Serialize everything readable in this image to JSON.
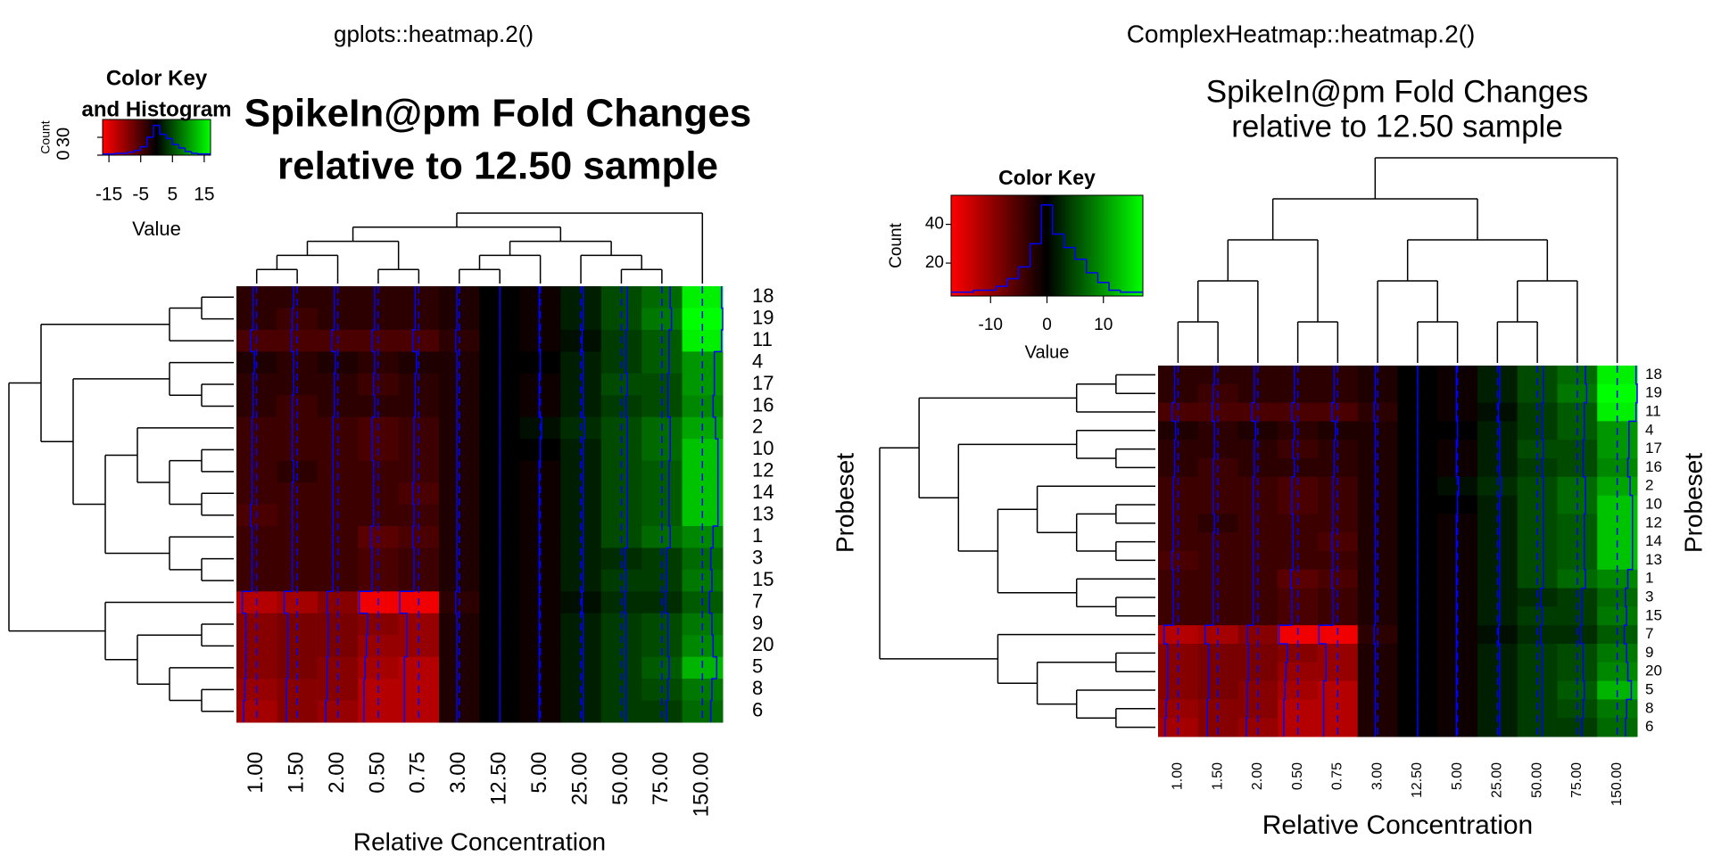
{
  "chart_data": [
    {
      "type": "heatmap",
      "title": "gplots::heatmap.2()",
      "main_title": [
        "SpikeIn@pm Fold Changes",
        "relative to 12.50 sample"
      ],
      "xlabel": "Relative Concentration",
      "categories": [
        "1.00",
        "1.50",
        "2.00",
        "0.50",
        "0.75",
        "3.00",
        "12.50",
        "5.00",
        "25.00",
        "50.00",
        "75.00",
        "150.00"
      ],
      "rows": [
        "18",
        "19",
        "11",
        "4",
        "17",
        "16",
        "2",
        "10",
        "12",
        "14",
        "13",
        "1",
        "3",
        "15",
        "7",
        "9",
        "20",
        "5",
        "8",
        "6"
      ],
      "values": [
        [
          -3,
          -3,
          -3,
          -3,
          -3,
          -2,
          0,
          -1,
          2,
          5,
          7,
          16
        ],
        [
          -3,
          -4,
          -3,
          -3,
          -3,
          -2,
          0,
          -1,
          2,
          5,
          8,
          17
        ],
        [
          -5,
          -5,
          -5,
          -5,
          -5,
          -3,
          0,
          -1,
          1,
          4,
          6,
          16
        ],
        [
          -2,
          -3,
          -2,
          -3,
          -2,
          -2,
          0,
          0,
          2,
          4,
          6,
          10
        ],
        [
          -3,
          -3,
          -3,
          -4,
          -3,
          -2,
          0,
          -1,
          2,
          5,
          5,
          10
        ],
        [
          -3,
          -4,
          -3,
          -3,
          -3,
          -2,
          0,
          -1,
          2,
          4,
          5,
          9
        ],
        [
          -4,
          -4,
          -4,
          -5,
          -4,
          -2,
          0,
          1,
          3,
          5,
          7,
          11
        ],
        [
          -4,
          -4,
          -4,
          -5,
          -4,
          -2,
          0,
          0,
          2,
          5,
          7,
          13
        ],
        [
          -4,
          -3,
          -4,
          -4,
          -4,
          -2,
          0,
          -1,
          2,
          5,
          6,
          13
        ],
        [
          -4,
          -4,
          -4,
          -4,
          -5,
          -2,
          0,
          -1,
          2,
          5,
          6,
          13
        ],
        [
          -5,
          -4,
          -4,
          -4,
          -4,
          -2,
          0,
          -1,
          2,
          5,
          6,
          13
        ],
        [
          -4,
          -4,
          -4,
          -6,
          -5,
          -2,
          0,
          -1,
          2,
          5,
          7,
          9
        ],
        [
          -4,
          -4,
          -4,
          -5,
          -4,
          -2,
          0,
          -1,
          2,
          3,
          4,
          7
        ],
        [
          -4,
          -4,
          -4,
          -5,
          -4,
          -2,
          0,
          -1,
          2,
          4,
          4,
          8
        ],
        [
          -12,
          -11,
          -9,
          -16,
          -16,
          -3,
          0,
          -1,
          1,
          3,
          3,
          6
        ],
        [
          -9,
          -8,
          -8,
          -9,
          -10,
          -2,
          0,
          -1,
          2,
          4,
          5,
          8
        ],
        [
          -9,
          -8,
          -8,
          -10,
          -10,
          -2,
          0,
          -1,
          2,
          4,
          5,
          9
        ],
        [
          -9,
          -8,
          -9,
          -11,
          -12,
          -2,
          0,
          -1,
          2,
          4,
          6,
          12
        ],
        [
          -10,
          -9,
          -9,
          -12,
          -12,
          -2,
          0,
          -1,
          2,
          4,
          5,
          8
        ],
        [
          -11,
          -9,
          -10,
          -12,
          -12,
          -2,
          0,
          -1,
          2,
          4,
          4,
          7
        ]
      ],
      "zlim": [
        -17,
        17
      ],
      "color_scale": [
        "#ff0000",
        "#000000",
        "#00ff00"
      ],
      "trace_color": "#0000ff",
      "key": {
        "title": [
          "Color Key",
          "and Histogram"
        ],
        "xlabel": "Value",
        "ylabel": "Count",
        "xlim": [
          -17,
          17
        ],
        "xticks": [
          -15,
          -5,
          5,
          15
        ],
        "ylim": [
          0,
          60
        ],
        "yticks": [
          0,
          30
        ],
        "bins": [
          -17,
          -15,
          -13,
          -11,
          -9,
          -7,
          -5,
          -3,
          -1,
          1,
          3,
          5,
          7,
          9,
          11,
          13,
          15,
          17
        ],
        "counts": [
          2,
          2,
          3,
          3,
          5,
          8,
          14,
          30,
          50,
          35,
          28,
          18,
          12,
          6,
          3,
          2,
          2
        ]
      }
    },
    {
      "type": "heatmap",
      "title": "ComplexHeatmap::heatmap.2()",
      "main_title": [
        "SpikeIn@pm Fold Changes",
        "relative to 12.50 sample"
      ],
      "xlabel": "Relative Concentration",
      "ylabel": "Probeset",
      "categories": [
        "1.00",
        "1.50",
        "2.00",
        "0.50",
        "0.75",
        "3.00",
        "12.50",
        "5.00",
        "25.00",
        "50.00",
        "75.00",
        "150.00"
      ],
      "rows": [
        "18",
        "19",
        "11",
        "4",
        "17",
        "16",
        "2",
        "10",
        "12",
        "14",
        "13",
        "1",
        "3",
        "15",
        "7",
        "9",
        "20",
        "5",
        "8",
        "6"
      ],
      "values": [
        [
          -3,
          -3,
          -3,
          -3,
          -3,
          -2,
          0,
          -1,
          2,
          5,
          7,
          16
        ],
        [
          -3,
          -4,
          -3,
          -3,
          -3,
          -2,
          0,
          -1,
          2,
          5,
          8,
          17
        ],
        [
          -5,
          -5,
          -5,
          -5,
          -5,
          -3,
          0,
          -1,
          1,
          4,
          6,
          16
        ],
        [
          -2,
          -3,
          -2,
          -3,
          -2,
          -2,
          0,
          0,
          2,
          4,
          6,
          10
        ],
        [
          -3,
          -3,
          -3,
          -4,
          -3,
          -2,
          0,
          -1,
          2,
          5,
          5,
          10
        ],
        [
          -3,
          -4,
          -3,
          -3,
          -3,
          -2,
          0,
          -1,
          2,
          4,
          5,
          9
        ],
        [
          -4,
          -4,
          -4,
          -5,
          -4,
          -2,
          0,
          1,
          3,
          5,
          7,
          11
        ],
        [
          -4,
          -4,
          -4,
          -5,
          -4,
          -2,
          0,
          0,
          2,
          5,
          7,
          13
        ],
        [
          -4,
          -3,
          -4,
          -4,
          -4,
          -2,
          0,
          -1,
          2,
          5,
          6,
          13
        ],
        [
          -4,
          -4,
          -4,
          -4,
          -5,
          -2,
          0,
          -1,
          2,
          5,
          6,
          13
        ],
        [
          -5,
          -4,
          -4,
          -4,
          -4,
          -2,
          0,
          -1,
          2,
          5,
          6,
          13
        ],
        [
          -4,
          -4,
          -4,
          -6,
          -5,
          -2,
          0,
          -1,
          2,
          5,
          7,
          9
        ],
        [
          -4,
          -4,
          -4,
          -5,
          -4,
          -2,
          0,
          -1,
          2,
          3,
          4,
          7
        ],
        [
          -4,
          -4,
          -4,
          -5,
          -4,
          -2,
          0,
          -1,
          2,
          4,
          4,
          8
        ],
        [
          -12,
          -11,
          -9,
          -16,
          -16,
          -3,
          0,
          -1,
          1,
          3,
          3,
          6
        ],
        [
          -9,
          -8,
          -8,
          -9,
          -10,
          -2,
          0,
          -1,
          2,
          4,
          5,
          8
        ],
        [
          -9,
          -8,
          -8,
          -10,
          -10,
          -2,
          0,
          -1,
          2,
          4,
          5,
          9
        ],
        [
          -9,
          -8,
          -9,
          -11,
          -12,
          -2,
          0,
          -1,
          2,
          4,
          6,
          12
        ],
        [
          -10,
          -9,
          -9,
          -12,
          -12,
          -2,
          0,
          -1,
          2,
          4,
          5,
          8
        ],
        [
          -11,
          -9,
          -10,
          -12,
          -12,
          -2,
          0,
          -1,
          2,
          4,
          4,
          7
        ]
      ],
      "zlim": [
        -17,
        17
      ],
      "color_scale": [
        "#ff0000",
        "#000000",
        "#00ff00"
      ],
      "trace_color": "#0000ff",
      "key": {
        "title": [
          "Color Key"
        ],
        "xlabel": "Value",
        "ylabel": "Count",
        "xlim": [
          -17,
          17
        ],
        "xticks": [
          -10,
          0,
          10
        ],
        "ylim": [
          3,
          55
        ],
        "yticks": [
          20,
          40
        ],
        "bins": [
          -17,
          -15,
          -13,
          -11,
          -9,
          -7,
          -5,
          -3,
          -1,
          1,
          3,
          5,
          7,
          9,
          11,
          13,
          15,
          17
        ],
        "counts": [
          5,
          5,
          6,
          6,
          8,
          12,
          18,
          30,
          50,
          35,
          28,
          22,
          15,
          10,
          6,
          5,
          5
        ]
      }
    }
  ]
}
